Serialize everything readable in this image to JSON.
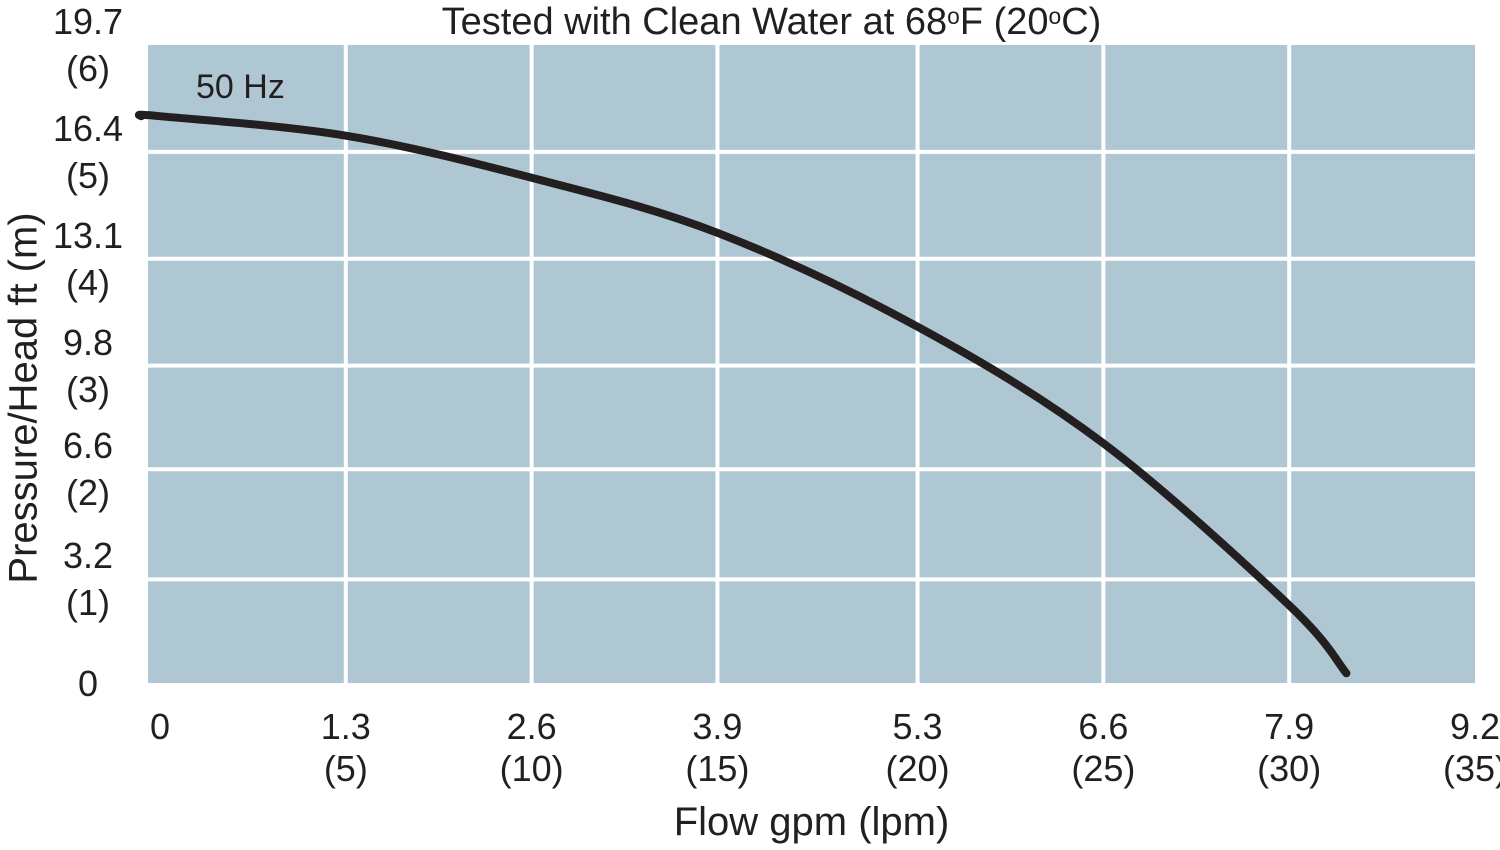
{
  "title": {
    "pre": "Tested with Clean Water at 68",
    "sup1": "o",
    "mid": "F (20",
    "sup2": "o",
    "post": "C)"
  },
  "chart_data": {
    "type": "line",
    "title": "Tested with Clean Water at 68ºF (20ºC)",
    "xlabel": "Flow gpm (lpm)",
    "ylabel": "Pressure/Head ft (m)",
    "xlim": [
      0,
      9.2
    ],
    "ylim": [
      0,
      19.7
    ],
    "grid": true,
    "legend_position": "none",
    "plot_bg_color": "#AFC7D2",
    "grid_color": "#FFFFFF",
    "curve_color": "#231F20",
    "text_color": "#231F20",
    "x_ticks": [
      {
        "gpm": 0,
        "label": "0",
        "sub": ""
      },
      {
        "gpm": 1.3,
        "label": "1.3",
        "sub": "(5)"
      },
      {
        "gpm": 2.6,
        "label": "2.6",
        "sub": "(10)"
      },
      {
        "gpm": 3.9,
        "label": "3.9",
        "sub": "(15)"
      },
      {
        "gpm": 5.3,
        "label": "5.3",
        "sub": "(20)"
      },
      {
        "gpm": 6.6,
        "label": "6.6",
        "sub": "(25)"
      },
      {
        "gpm": 7.9,
        "label": "7.9",
        "sub": "(30)"
      },
      {
        "gpm": 9.2,
        "label": "9.2",
        "sub": "(35)"
      }
    ],
    "y_ticks": [
      {
        "ft": 19.7,
        "label": "19.7",
        "sub": "(6)"
      },
      {
        "ft": 16.4,
        "label": "16.4",
        "sub": "(5)"
      },
      {
        "ft": 13.1,
        "label": "13.1",
        "sub": "(4)"
      },
      {
        "ft": 9.8,
        "label": "9.8",
        "sub": "(3)"
      },
      {
        "ft": 6.6,
        "label": "6.6",
        "sub": "(2)"
      },
      {
        "ft": 3.2,
        "label": "3.2",
        "sub": "(1)"
      },
      {
        "ft": 0,
        "label": "0",
        "sub": ""
      }
    ],
    "series": [
      {
        "name": "50 Hz",
        "points_gpm_ft": [
          [
            0,
            17.5
          ],
          [
            1.3,
            16.9
          ],
          [
            2.6,
            15.6
          ],
          [
            3.9,
            13.9
          ],
          [
            5.3,
            11.0
          ],
          [
            6.6,
            7.4
          ],
          [
            7.9,
            2.4
          ],
          [
            8.3,
            0.3
          ]
        ]
      }
    ]
  }
}
